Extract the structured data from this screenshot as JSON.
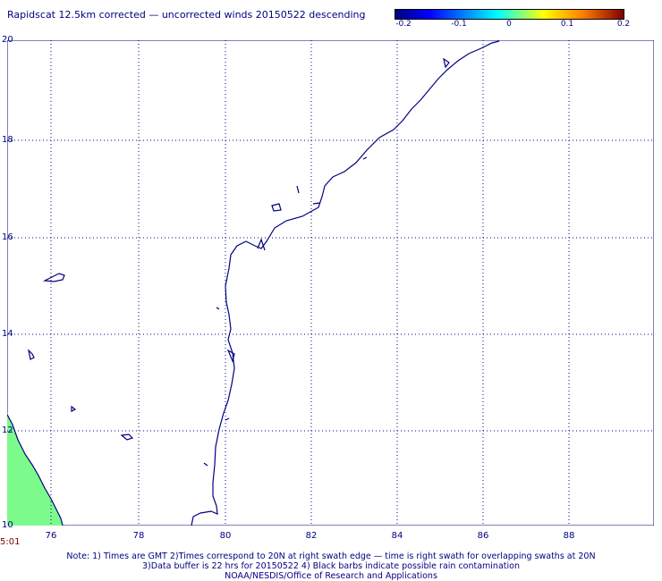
{
  "title": "Rapidscat 12.5km corrected — uncorrected winds 20150522 descending",
  "colorbar": {
    "labels": [
      "-0.2",
      "-0.1",
      "0",
      "0.1",
      "0.2"
    ],
    "colors": [
      "#00007f",
      "#0000ff",
      "#00ffff",
      "#ffff00",
      "#ff7f00",
      "#7f0000"
    ]
  },
  "map": {
    "lat_labels": [
      "20",
      "18",
      "16",
      "14",
      "12",
      "10"
    ],
    "lon_labels": [
      "76",
      "78",
      "80",
      "82",
      "84",
      "86",
      "88"
    ],
    "coast_color": "#000080",
    "grid_color": "#000080",
    "swath_color": "#7dfa8c",
    "land_swath_color": "#7dfa8c"
  },
  "time_stamp": "5:01",
  "notes": [
    "Note: 1) Times are GMT 2)Times correspond to 20N at right swath edge — time is right swath for overlapping swaths at 20N",
    "3)Data buffer is 22 hrs for 20150522 4) Black barbs indicate possible rain contamination",
    "NOAA/NESDIS/Office of Research and Applications"
  ]
}
